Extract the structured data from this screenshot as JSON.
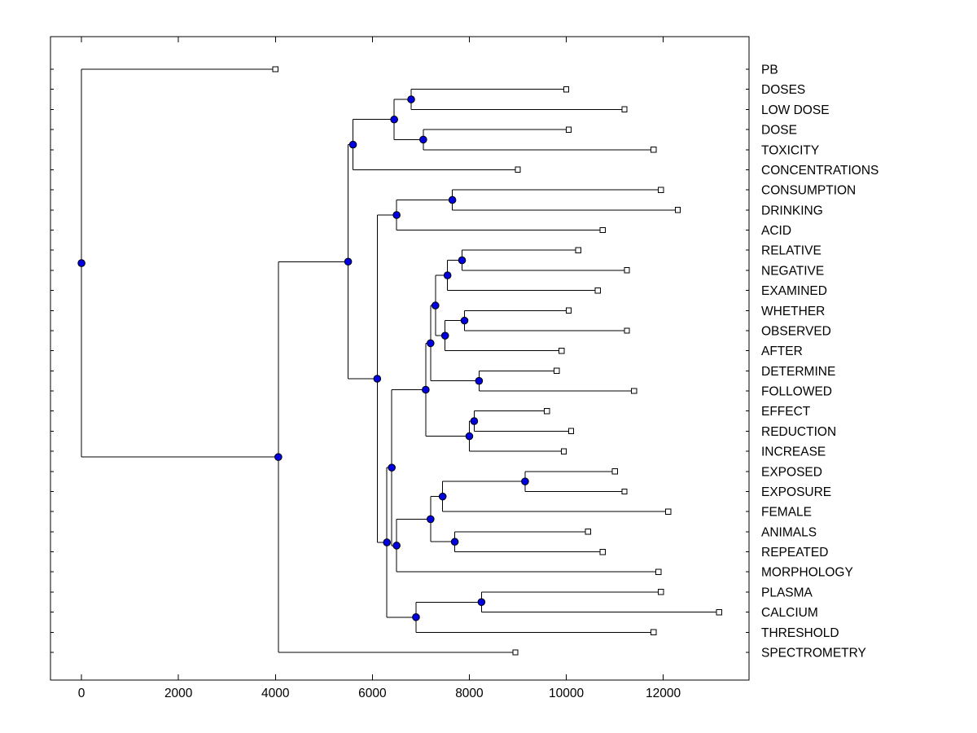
{
  "figure": {
    "background": "#FFFFFF",
    "border_color": "#000000"
  },
  "chart_data": {
    "type": "dendrogram",
    "title": "",
    "subtitle": "",
    "orientation": "root-left-leaves-right",
    "xlabel": "",
    "ylabel": "",
    "xlim": [
      -640,
      13770
    ],
    "x_ticks": [
      0,
      2000,
      4000,
      6000,
      8000,
      10000,
      12000
    ],
    "x_tick_labels": [
      "0",
      "2000",
      "4000",
      "6000",
      "8000",
      "10000",
      "12000"
    ],
    "grid": false,
    "legend": false,
    "leaf_labels": [
      "PB",
      "DOSES",
      "LOW DOSE",
      "DOSE",
      "TOXICITY",
      "CONCENTRATIONS",
      "CONSUMPTION",
      "DRINKING",
      "ACID",
      "RELATIVE",
      "NEGATIVE",
      "EXAMINED",
      "WHETHER",
      "OBSERVED",
      "AFTER",
      "DETERMINE",
      "FOLLOWED",
      "EFFECT",
      "REDUCTION",
      "INCREASE",
      "EXPOSED",
      "EXPOSURE",
      "FEMALE",
      "ANIMALS",
      "REPEATED",
      "MORPHOLOGY",
      "PLASMA",
      "CALCIUM",
      "THRESHOLD",
      "SPECTROMETRY"
    ],
    "style": {
      "line_color": "#000000",
      "internal_node_marker": "filled-circle",
      "internal_node_fill": "#0000E0",
      "internal_node_edge": "#000000",
      "leaf_marker": "open-square",
      "leaf_marker_fill": "#FFFFFF",
      "leaf_marker_edge": "#000000"
    },
    "tree": {
      "v": 0,
      "c": [
        {
          "label": "PB",
          "v": 4000
        },
        {
          "v": 4060,
          "c": [
            {
              "v": 5500,
              "c": [
                {
                  "v": 5600,
                  "c": [
                    {
                      "v": 6450,
                      "c": [
                        {
                          "v": 6800,
                          "c": [
                            {
                              "label": "DOSES",
                              "v": 10000
                            },
                            {
                              "label": "LOW DOSE",
                              "v": 11200
                            }
                          ]
                        },
                        {
                          "v": 7050,
                          "c": [
                            {
                              "label": "DOSE",
                              "v": 10050
                            },
                            {
                              "label": "TOXICITY",
                              "v": 11800
                            }
                          ]
                        }
                      ]
                    },
                    {
                      "label": "CONCENTRATIONS",
                      "v": 9000
                    }
                  ]
                },
                {
                  "v": 6100,
                  "c": [
                    {
                      "v": 6500,
                      "c": [
                        {
                          "v": 7650,
                          "c": [
                            {
                              "label": "CONSUMPTION",
                              "v": 11950
                            },
                            {
                              "label": "DRINKING",
                              "v": 12300
                            }
                          ]
                        },
                        {
                          "label": "ACID",
                          "v": 10750
                        }
                      ]
                    },
                    {
                      "v": 6300,
                      "c": [
                        {
                          "v": 6400,
                          "c": [
                            {
                              "v": 7100,
                              "c": [
                                {
                                  "v": 7200,
                                  "c": [
                                    {
                                      "v": 7300,
                                      "c": [
                                        {
                                          "v": 7550,
                                          "c": [
                                            {
                                              "v": 7850,
                                              "c": [
                                                {
                                                  "label": "RELATIVE",
                                                  "v": 10250
                                                },
                                                {
                                                  "label": "NEGATIVE",
                                                  "v": 11250
                                                }
                                              ]
                                            },
                                            {
                                              "label": "EXAMINED",
                                              "v": 10650
                                            }
                                          ]
                                        },
                                        {
                                          "v": 7500,
                                          "c": [
                                            {
                                              "v": 7900,
                                              "c": [
                                                {
                                                  "label": "WHETHER",
                                                  "v": 10050
                                                },
                                                {
                                                  "label": "OBSERVED",
                                                  "v": 11250
                                                }
                                              ]
                                            },
                                            {
                                              "label": "AFTER",
                                              "v": 9900
                                            }
                                          ]
                                        }
                                      ]
                                    },
                                    {
                                      "v": 8200,
                                      "c": [
                                        {
                                          "label": "DETERMINE",
                                          "v": 9800
                                        },
                                        {
                                          "label": "FOLLOWED",
                                          "v": 11400
                                        }
                                      ]
                                    }
                                  ]
                                },
                                {
                                  "v": 8000,
                                  "c": [
                                    {
                                      "v": 8100,
                                      "c": [
                                        {
                                          "label": "EFFECT",
                                          "v": 9600
                                        },
                                        {
                                          "label": "REDUCTION",
                                          "v": 10100
                                        }
                                      ]
                                    },
                                    {
                                      "label": "INCREASE",
                                      "v": 9950
                                    }
                                  ]
                                }
                              ]
                            },
                            {
                              "v": 6500,
                              "c": [
                                {
                                  "v": 7200,
                                  "c": [
                                    {
                                      "v": 7450,
                                      "c": [
                                        {
                                          "v": 9150,
                                          "c": [
                                            {
                                              "label": "EXPOSED",
                                              "v": 11000
                                            },
                                            {
                                              "label": "EXPOSURE",
                                              "v": 11200
                                            }
                                          ]
                                        },
                                        {
                                          "label": "FEMALE",
                                          "v": 12100
                                        }
                                      ]
                                    },
                                    {
                                      "v": 7700,
                                      "c": [
                                        {
                                          "label": "ANIMALS",
                                          "v": 10450
                                        },
                                        {
                                          "label": "REPEATED",
                                          "v": 10750
                                        }
                                      ]
                                    }
                                  ]
                                },
                                {
                                  "label": "MORPHOLOGY",
                                  "v": 11900
                                }
                              ]
                            }
                          ]
                        },
                        {
                          "v": 6900,
                          "c": [
                            {
                              "v": 8250,
                              "c": [
                                {
                                  "label": "PLASMA",
                                  "v": 11950
                                },
                                {
                                  "label": "CALCIUM",
                                  "v": 13150
                                }
                              ]
                            },
                            {
                              "label": "THRESHOLD",
                              "v": 11800
                            }
                          ]
                        }
                      ]
                    }
                  ]
                }
              ]
            },
            {
              "label": "SPECTROMETRY",
              "v": 8950
            }
          ]
        }
      ]
    }
  }
}
